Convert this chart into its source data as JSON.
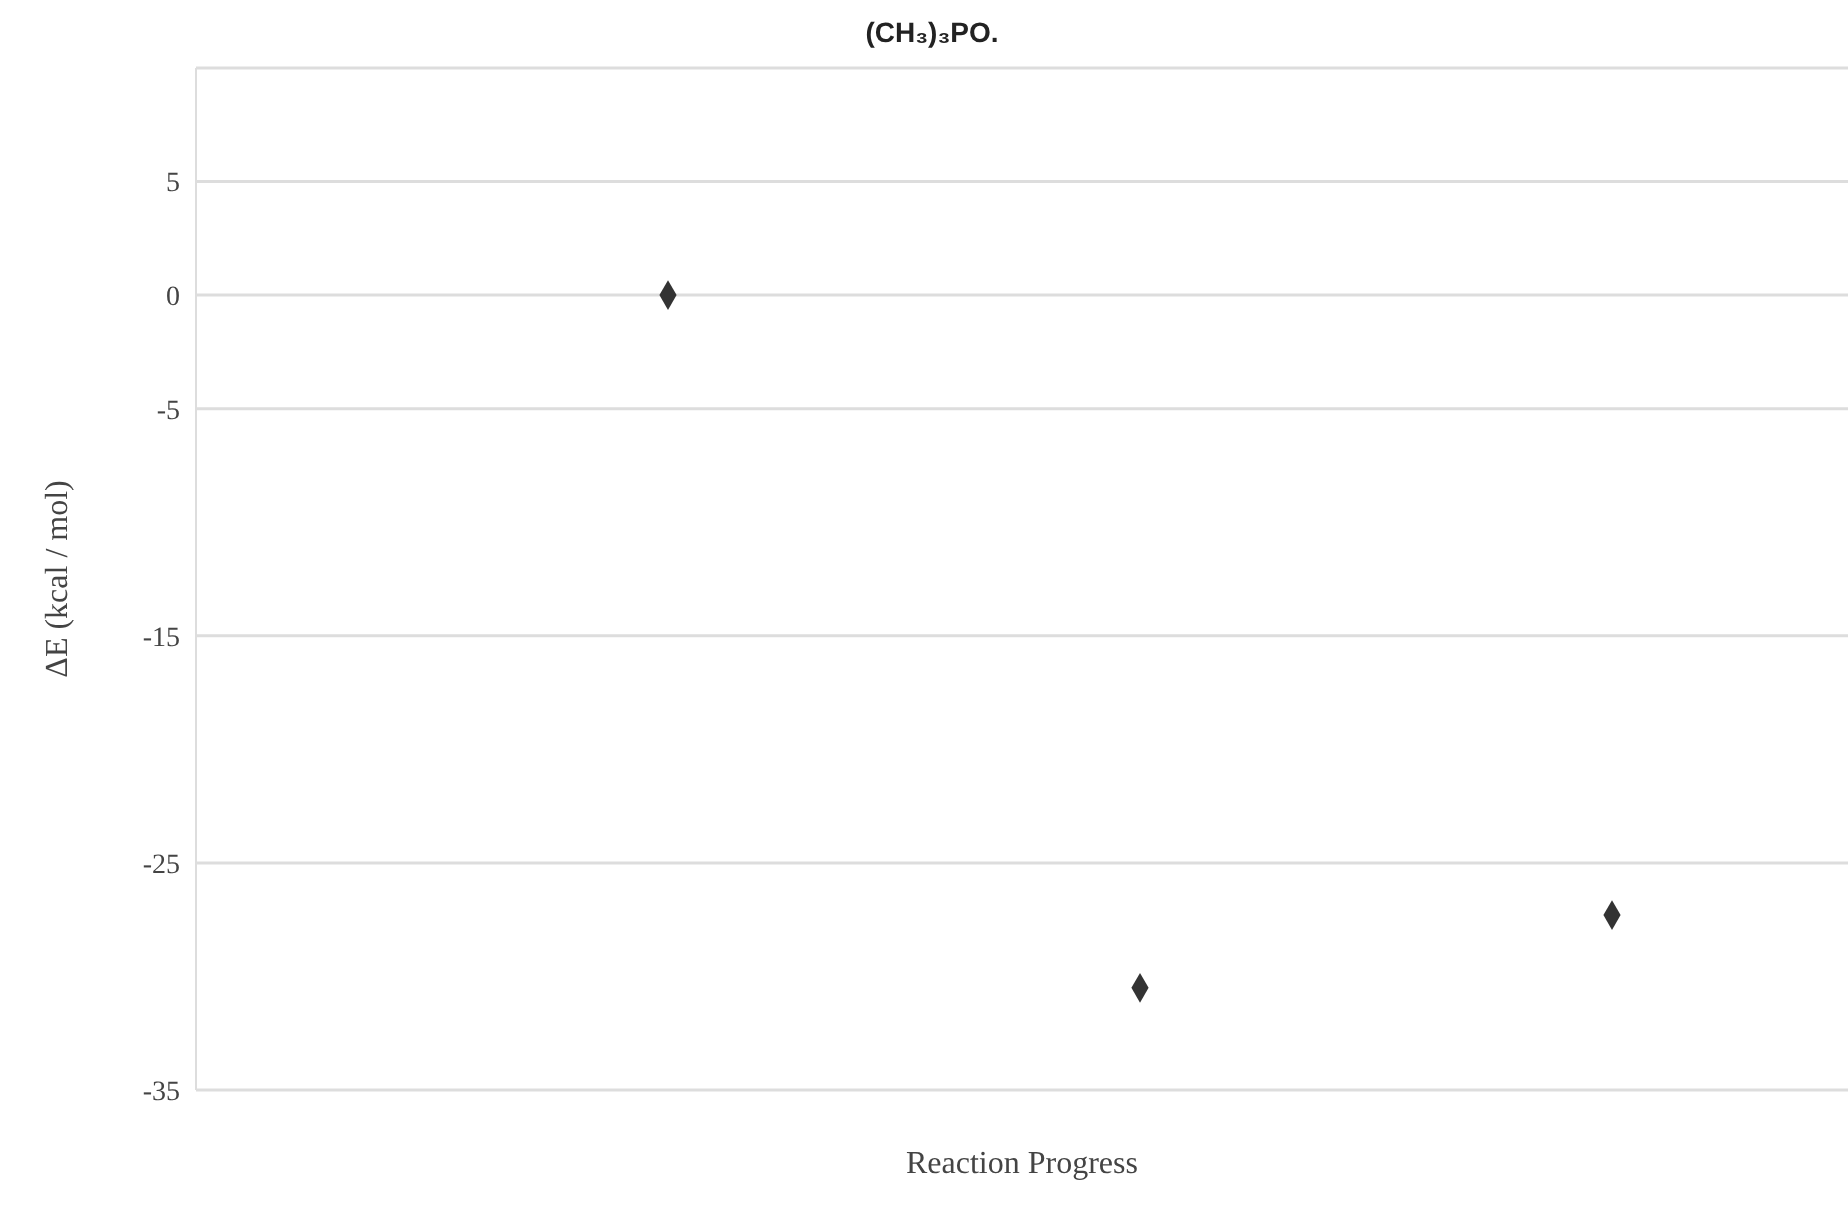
{
  "chart_data": {
    "type": "scatter",
    "title": "(CH₃)₃PO.",
    "xlabel": "Reaction Progress",
    "ylabel": "ΔE (kcal / mol)",
    "categories": [
      null,
      null,
      null
    ],
    "series": [
      {
        "color": "#333333",
        "values": [
          0,
          -30.5,
          -27.3
        ]
      }
    ],
    "ylim": [
      -35,
      10
    ],
    "yticks": [
      5,
      0,
      -5,
      -15,
      -25,
      -35
    ],
    "grid": "y",
    "marker": "diamond",
    "legend": false
  }
}
